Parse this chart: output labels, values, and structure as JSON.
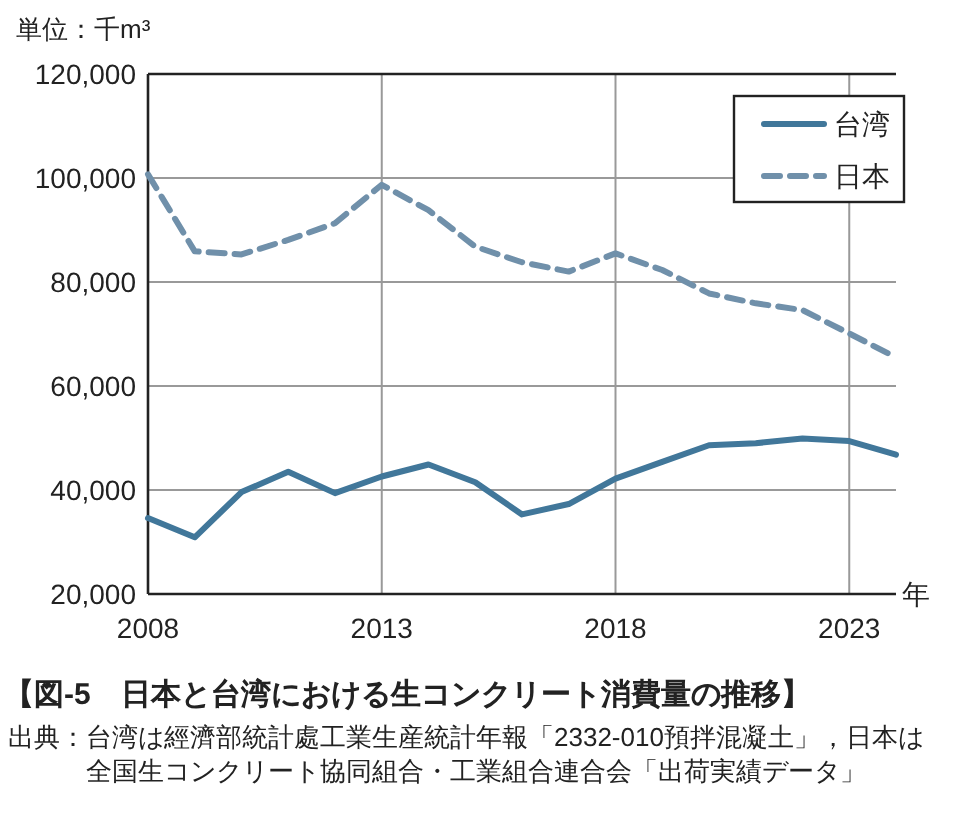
{
  "chart_data": {
    "type": "line",
    "title": "【図-5　日本と台湾における生コンクリート消費量の推移】",
    "ylabel": "単位：千m³",
    "xlabel": "年",
    "x": [
      2008,
      2009,
      2010,
      2011,
      2012,
      2013,
      2014,
      2015,
      2016,
      2017,
      2018,
      2019,
      2020,
      2021,
      2022,
      2023,
      2024
    ],
    "series": [
      {
        "name": "台湾",
        "color": "#41779a",
        "line_style": "solid",
        "values": [
          34600,
          30900,
          39600,
          43500,
          39400,
          42600,
          44900,
          41500,
          35300,
          37300,
          42200,
          45400,
          48600,
          49000,
          49900,
          49400,
          46800
        ]
      },
      {
        "name": "日本",
        "color": "#7090aa",
        "line_style": "dashed",
        "values": [
          100700,
          85900,
          85300,
          88100,
          91300,
          98700,
          93800,
          86800,
          83800,
          82000,
          85500,
          82300,
          77800,
          75900,
          74600,
          70100,
          65500
        ]
      }
    ],
    "xlim": [
      2008,
      2024
    ],
    "xticks": [
      2008,
      2013,
      2018,
      2023
    ],
    "ylim": [
      20000,
      120000
    ],
    "yticks": [
      {
        "value": 20000,
        "label": "20,000"
      },
      {
        "value": 40000,
        "label": "40,000"
      },
      {
        "value": 60000,
        "label": "60,000"
      },
      {
        "value": 80000,
        "label": "80,000"
      },
      {
        "value": 100000,
        "label": "100,000"
      },
      {
        "value": 120000,
        "label": "120,000"
      }
    ],
    "grid": true,
    "legend": "top right",
    "marker": "none",
    "annotations": [
      "出典：台湾は經濟部統計處工業生産統計年報「2332-010預拌混凝土」，日本は全国生コンクリート協同組合・工業組合連合会「出荷実績データ」"
    ]
  }
}
